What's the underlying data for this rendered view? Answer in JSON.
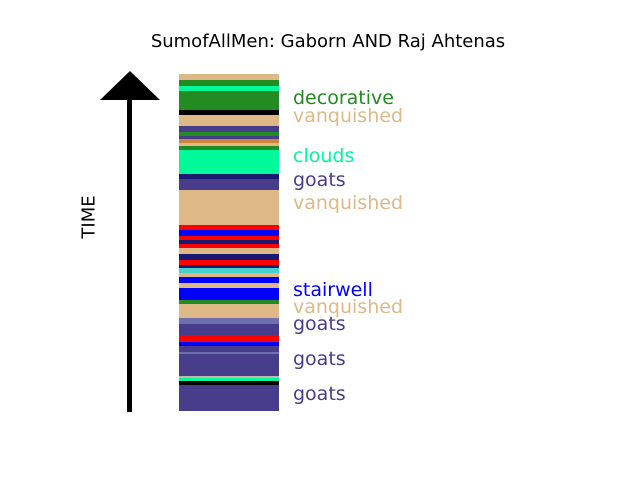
{
  "title": "SumofAllMen: Gaborn AND Raj Ahtenas",
  "axis_label": "TIME",
  "palette": {
    "tan": "#deb887",
    "green": "#228b22",
    "spring": "#00fa9a",
    "slate": "#483d8b",
    "blue": "#0000ff",
    "red": "#ff0000",
    "navy": "#191970",
    "black": "#000000",
    "cyan": "#48d1cc",
    "steel": "#6f6fb0",
    "orange": "#cd853f",
    "gray": "#bdb9b0"
  },
  "bands": [
    {
      "color": "tan",
      "start": 0,
      "end": 6
    },
    {
      "color": "green",
      "start": 6,
      "end": 12
    },
    {
      "color": "spring",
      "start": 12,
      "end": 17
    },
    {
      "color": "green",
      "start": 17,
      "end": 36
    },
    {
      "color": "black",
      "start": 36,
      "end": 41
    },
    {
      "color": "tan",
      "start": 41,
      "end": 52
    },
    {
      "color": "slate",
      "start": 52,
      "end": 58
    },
    {
      "color": "green",
      "start": 58,
      "end": 62
    },
    {
      "color": "slate",
      "start": 62,
      "end": 65
    },
    {
      "color": "orange",
      "start": 65,
      "end": 69
    },
    {
      "color": "tan",
      "start": 69,
      "end": 72
    },
    {
      "color": "green",
      "start": 72,
      "end": 76
    },
    {
      "color": "spring",
      "start": 76,
      "end": 100
    },
    {
      "color": "navy",
      "start": 100,
      "end": 105
    },
    {
      "color": "slate",
      "start": 105,
      "end": 116
    },
    {
      "color": "tan",
      "start": 116,
      "end": 151
    },
    {
      "color": "red",
      "start": 151,
      "end": 156
    },
    {
      "color": "blue",
      "start": 156,
      "end": 162
    },
    {
      "color": "red",
      "start": 162,
      "end": 166
    },
    {
      "color": "navy",
      "start": 166,
      "end": 170
    },
    {
      "color": "red",
      "start": 170,
      "end": 174
    },
    {
      "color": "tan",
      "start": 174,
      "end": 180
    },
    {
      "color": "navy",
      "start": 180,
      "end": 186
    },
    {
      "color": "red",
      "start": 186,
      "end": 191
    },
    {
      "color": "navy",
      "start": 191,
      "end": 194
    },
    {
      "color": "cyan",
      "start": 194,
      "end": 199
    },
    {
      "color": "tan",
      "start": 199,
      "end": 203
    },
    {
      "color": "blue",
      "start": 203,
      "end": 209
    },
    {
      "color": "tan",
      "start": 209,
      "end": 214
    },
    {
      "color": "blue",
      "start": 214,
      "end": 226
    },
    {
      "color": "green",
      "start": 226,
      "end": 230
    },
    {
      "color": "tan",
      "start": 230,
      "end": 244
    },
    {
      "color": "steel",
      "start": 244,
      "end": 250
    },
    {
      "color": "slate",
      "start": 250,
      "end": 261
    },
    {
      "color": "red",
      "start": 261,
      "end": 268
    },
    {
      "color": "blue",
      "start": 268,
      "end": 272
    },
    {
      "color": "slate",
      "start": 272,
      "end": 278
    },
    {
      "color": "steel",
      "start": 278,
      "end": 280
    },
    {
      "color": "slate",
      "start": 280,
      "end": 302
    },
    {
      "color": "gray",
      "start": 302,
      "end": 304
    },
    {
      "color": "spring",
      "start": 304,
      "end": 307
    },
    {
      "color": "black",
      "start": 307,
      "end": 311
    },
    {
      "color": "slate",
      "start": 311,
      "end": 337
    }
  ],
  "labels": [
    {
      "text": "decorative",
      "color": "#228b22",
      "pos": 25
    },
    {
      "text": "vanquished",
      "color": "#deb887",
      "pos": 43
    },
    {
      "text": "clouds",
      "color": "#00fa9a",
      "pos": 83
    },
    {
      "text": "goats",
      "color": "#483d8b",
      "pos": 107
    },
    {
      "text": "vanquished",
      "color": "#deb887",
      "pos": 130
    },
    {
      "text": "stairwell",
      "color": "#0000ff",
      "pos": 217
    },
    {
      "text": "vanquished",
      "color": "#deb887",
      "pos": 234
    },
    {
      "text": "goats",
      "color": "#483d8b",
      "pos": 251
    },
    {
      "text": "goats",
      "color": "#483d8b",
      "pos": 286
    },
    {
      "text": "goats",
      "color": "#483d8b",
      "pos": 321
    }
  ]
}
